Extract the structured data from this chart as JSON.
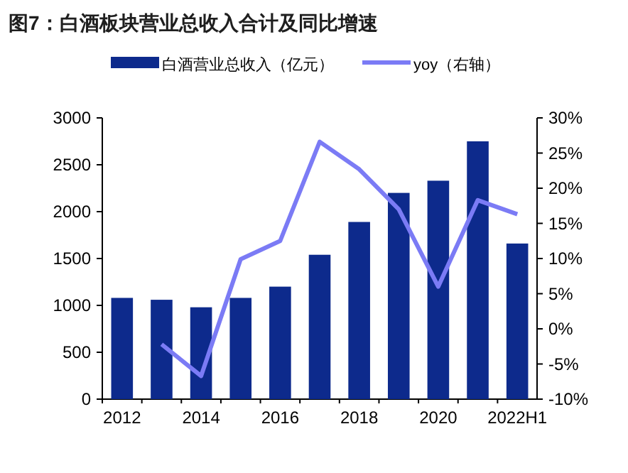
{
  "chart_data": {
    "type": "bar",
    "title": "图7：白酒板块营业总收入合计及同比增速",
    "categories": [
      "2012",
      null,
      "2014",
      null,
      "2016",
      null,
      "2018",
      null,
      "2020",
      null,
      "2022H1"
    ],
    "series": [
      {
        "name": "白酒营业总收入（亿元）",
        "color": "#0d2a8c",
        "values": [
          1080,
          1060,
          980,
          1080,
          1200,
          1540,
          1890,
          2200,
          2330,
          2750,
          1660
        ]
      },
      {
        "name": "yoy（右轴）",
        "type": "line",
        "axis": "y2",
        "color": "#7b7bf5",
        "values": [
          null,
          -2.2,
          -6.7,
          9.9,
          12.5,
          26.6,
          22.7,
          17.0,
          6.0,
          18.3,
          16.3
        ]
      }
    ],
    "ylim": [
      0,
      3000
    ],
    "yticks": [
      0,
      500,
      1000,
      1500,
      2000,
      2500,
      3000
    ],
    "y2lim": [
      -10,
      30
    ],
    "y2ticks": [
      {
        "value": -10,
        "label": "-10%"
      },
      {
        "value": -5,
        "label": "-5%"
      },
      {
        "value": 0,
        "label": "0%"
      },
      {
        "value": 5,
        "label": "5%"
      },
      {
        "value": 10,
        "label": "10%"
      },
      {
        "value": 15,
        "label": "15%"
      },
      {
        "value": 20,
        "label": "20%"
      },
      {
        "value": 25,
        "label": "25%"
      },
      {
        "value": 30,
        "label": "30%"
      }
    ],
    "grid": false,
    "legend": "top"
  }
}
